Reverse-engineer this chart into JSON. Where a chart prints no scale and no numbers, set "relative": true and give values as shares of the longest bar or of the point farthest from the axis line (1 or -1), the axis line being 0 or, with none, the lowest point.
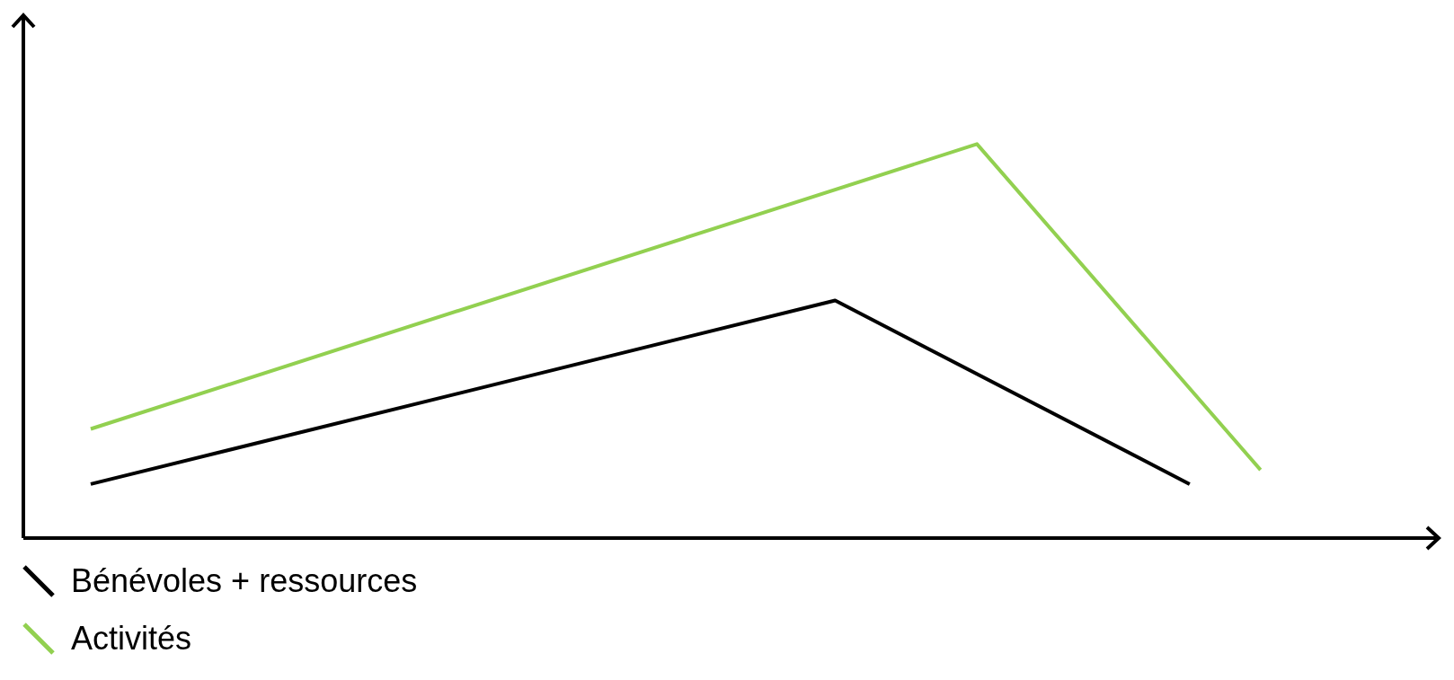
{
  "chart_data": {
    "type": "line",
    "relative": true,
    "legend": "bottom left",
    "marker": "none",
    "categories": [
      null,
      null,
      null,
      null,
      null,
      null,
      null,
      null,
      null,
      null,
      null,
      null,
      null,
      null,
      null,
      null,
      null,
      null,
      null,
      null,
      null,
      null,
      null,
      null,
      null,
      null,
      null,
      null,
      null,
      null,
      null,
      null,
      null,
      null
    ],
    "series": [
      {
        "name": "Bénévoles + ressources",
        "color": "#000000",
        "values": [
          0.137,
          null,
          null,
          null,
          null,
          null,
          null,
          null,
          null,
          null,
          null,
          null,
          null,
          null,
          null,
          null,
          null,
          null,
          null,
          null,
          null,
          0.603,
          null,
          null,
          null,
          null,
          null,
          null,
          null,
          null,
          null,
          0.137,
          null,
          null
        ]
      },
      {
        "name": "Activités",
        "color": "#92d050",
        "values": [
          0.277,
          null,
          null,
          null,
          null,
          null,
          null,
          null,
          null,
          null,
          null,
          null,
          null,
          null,
          null,
          null,
          null,
          null,
          null,
          null,
          null,
          null,
          null,
          null,
          null,
          1,
          null,
          null,
          null,
          null,
          null,
          null,
          null,
          0.173
        ]
      }
    ]
  }
}
